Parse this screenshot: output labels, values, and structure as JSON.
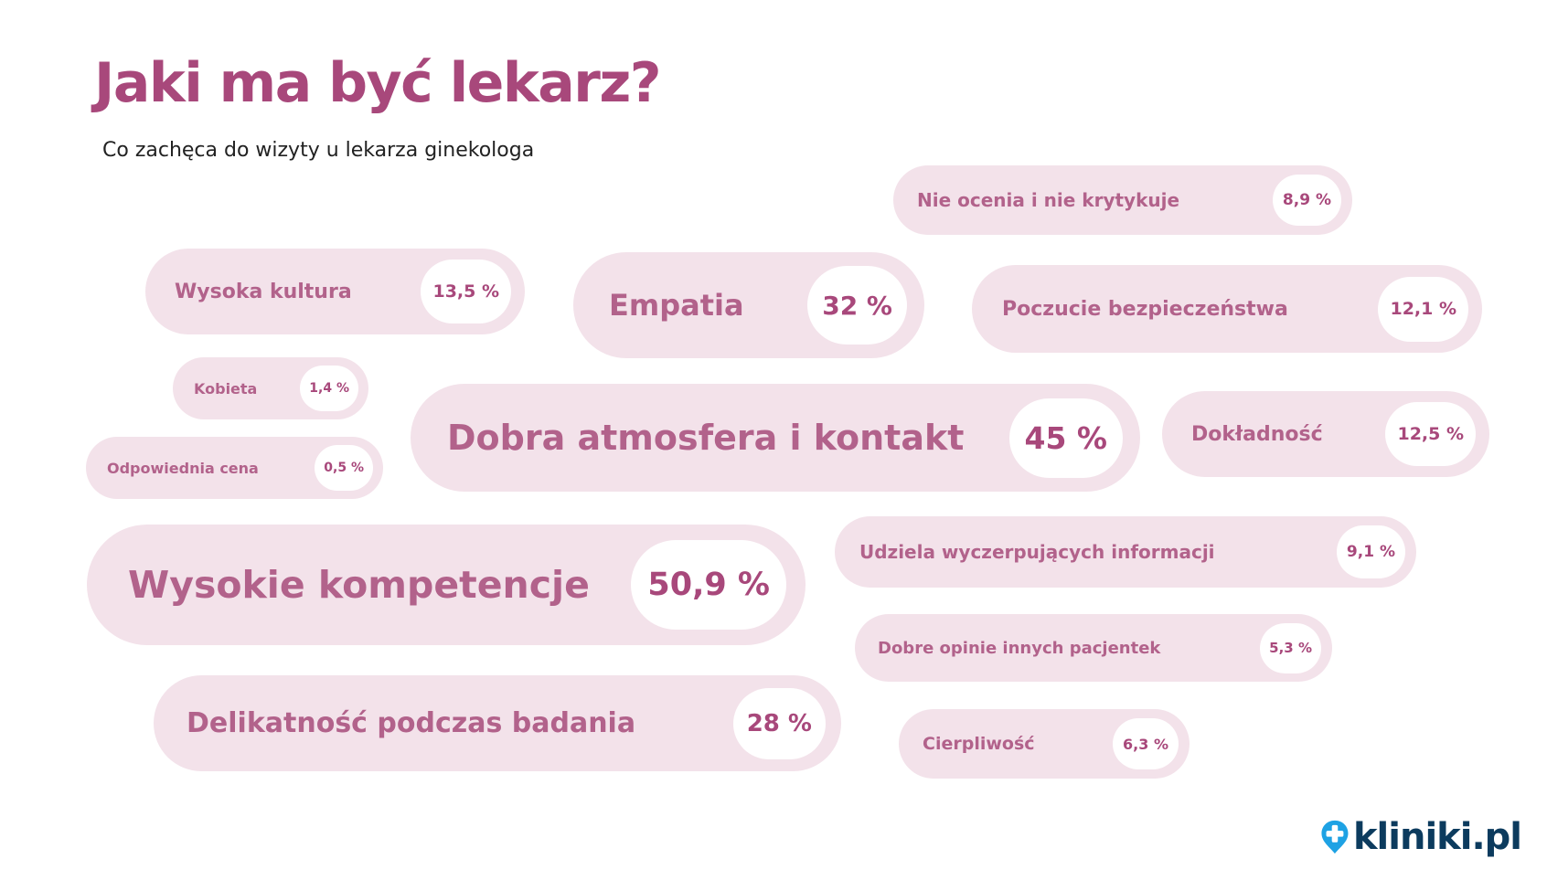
{
  "chart_data": {
    "type": "bubble",
    "title": "Jaki ma być lekarz?",
    "subtitle": "Co zachęca do wizyty u lekarza ginekologa",
    "unit": "%",
    "items": [
      {
        "label": "Nie ocenia i nie krytykuje",
        "value": 8.9,
        "value_label": "8,9 %"
      },
      {
        "label": "Wysoka kultura",
        "value": 13.5,
        "value_label": "13,5 %"
      },
      {
        "label": "Empatia",
        "value": 32,
        "value_label": "32 %"
      },
      {
        "label": "Poczucie bezpieczeństwa",
        "value": 12.1,
        "value_label": "12,1 %"
      },
      {
        "label": "Kobieta",
        "value": 1.4,
        "value_label": "1,4 %"
      },
      {
        "label": "Dobra atmosfera i kontakt",
        "value": 45,
        "value_label": "45 %"
      },
      {
        "label": "Dokładność",
        "value": 12.5,
        "value_label": "12,5 %"
      },
      {
        "label": "Odpowiednia cena",
        "value": 0.5,
        "value_label": "0,5 %"
      },
      {
        "label": "Udziela wyczerpujących informacji",
        "value": 9.1,
        "value_label": "9,1 %"
      },
      {
        "label": "Wysokie kompetencje",
        "value": 50.9,
        "value_label": "50,9 %"
      },
      {
        "label": "Dobre opinie innych pacjentek",
        "value": 5.3,
        "value_label": "5,3 %"
      },
      {
        "label": "Delikatność podczas badania",
        "value": 28,
        "value_label": "28 %"
      },
      {
        "label": "Cierpliwość",
        "value": 6.3,
        "value_label": "6,3 %"
      }
    ]
  },
  "logo": {
    "text": "kliniki.pl",
    "icon": "cross-pin-icon"
  },
  "colors": {
    "title": "#a8487b",
    "bubble_bg": "#f3e2ea",
    "bubble_text": "#b2628b",
    "value_bg": "#ffffff",
    "logo_blue": "#1ea2e4",
    "logo_text": "#0c3b5e"
  }
}
